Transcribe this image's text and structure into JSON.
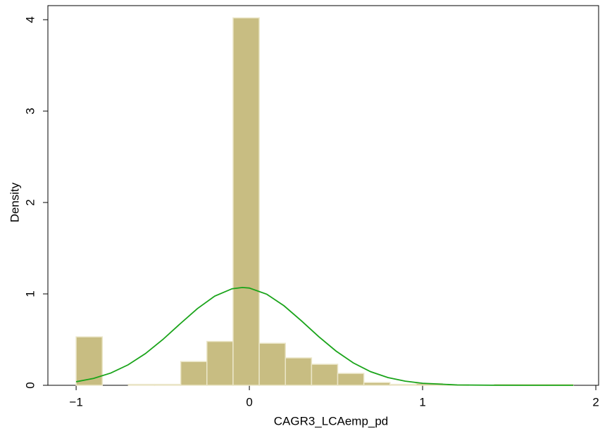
{
  "chart_data": {
    "type": "histogram",
    "x_label": "CAGR3_LCAemp_pd",
    "y_label": "Density",
    "bins": [
      -1,
      -0.849,
      -0.698,
      -0.547,
      -0.396,
      -0.245,
      -0.094,
      0.057,
      0.208,
      0.359,
      0.51,
      0.661,
      0.812,
      0.963,
      1.114,
      1.265,
      1.416,
      1.567,
      1.718,
      1.869
    ],
    "values": [
      0.53,
      0,
      0.01,
      0.01,
      0.26,
      0.48,
      4.02,
      0.46,
      0.3,
      0.23,
      0.13,
      0.03,
      0.01,
      0.02,
      0.005,
      0,
      0.01,
      0.01,
      0.01
    ],
    "color": "#c8bd82",
    "edge_color": "#ebe6c8",
    "density": {
      "x": [
        -1,
        -0.9,
        -0.8,
        -0.7,
        -0.6,
        -0.5,
        -0.4,
        -0.3,
        -0.2,
        -0.1,
        -0.04,
        0,
        0.1,
        0.2,
        0.3,
        0.4,
        0.5,
        0.6,
        0.7,
        0.8,
        0.9,
        1.0,
        1.2,
        1.4,
        1.6,
        1.87
      ],
      "values": [
        0.039,
        0.075,
        0.134,
        0.224,
        0.347,
        0.5,
        0.672,
        0.839,
        0.976,
        1.056,
        1.07,
        1.064,
        0.997,
        0.87,
        0.706,
        0.533,
        0.375,
        0.245,
        0.149,
        0.085,
        0.045,
        0.022,
        0.004,
        0.001,
        0,
        0
      ],
      "color": "#1aa41a"
    },
    "xlim": [
      -1.163,
      2.016
    ],
    "ylim": [
      0,
      4.154
    ],
    "xticks": [
      {
        "value": -1,
        "label": "−1"
      },
      0,
      1,
      2
    ],
    "yticks": [
      0,
      1,
      2,
      3,
      4
    ]
  }
}
